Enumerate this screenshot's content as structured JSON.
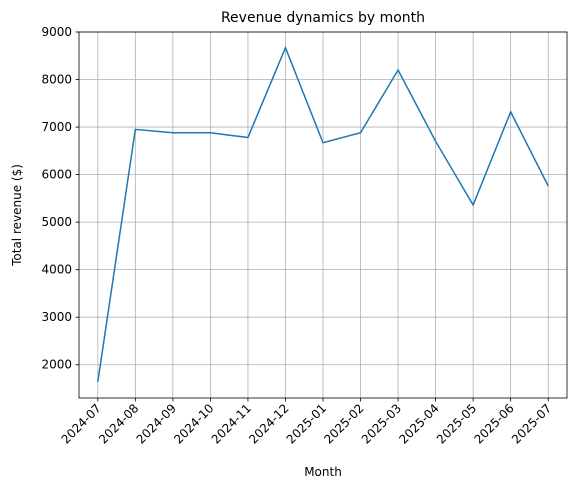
{
  "chart_data": {
    "type": "line",
    "title": "Revenue dynamics by month",
    "xlabel": "Month",
    "ylabel": "Total revenue ($)",
    "categories": [
      "2024-07",
      "2024-08",
      "2024-09",
      "2024-10",
      "2024-11",
      "2024-12",
      "2025-01",
      "2025-02",
      "2025-03",
      "2025-04",
      "2025-05",
      "2025-06",
      "2025-07"
    ],
    "series": [
      {
        "values": [
          1640,
          6950,
          6880,
          6880,
          6780,
          8670,
          6670,
          6880,
          8200,
          6700,
          5360,
          7320,
          5760
        ]
      }
    ],
    "ylim": [
      1300,
      9000
    ],
    "yticks": [
      2000,
      3000,
      4000,
      5000,
      6000,
      7000,
      8000,
      9000
    ],
    "grid": true,
    "colors": {
      "line": "#1f77b4",
      "grid": "#b0b0b0",
      "axis": "#000000"
    }
  }
}
